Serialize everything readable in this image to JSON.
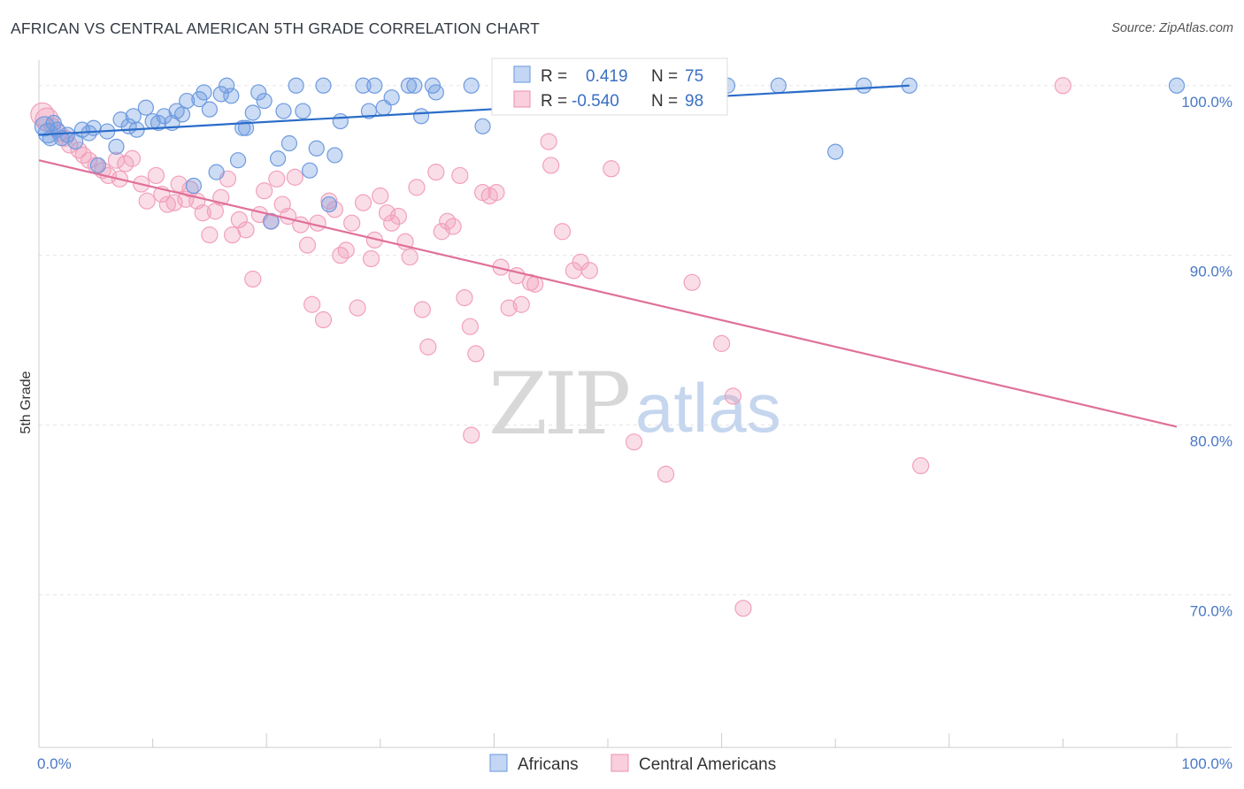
{
  "header": {
    "title": "AFRICAN VS CENTRAL AMERICAN 5TH GRADE CORRELATION CHART",
    "source": "Source: ZipAtlas.com"
  },
  "watermark": {
    "zip": "ZIP",
    "atlas": "atlas"
  },
  "legend": {
    "rows": [
      {
        "r_label": "R =",
        "r_value": "0.419",
        "n_label": "N =",
        "n_value": "75"
      },
      {
        "r_label": "R =",
        "r_value": "-0.540",
        "n_label": "N =",
        "n_value": "98"
      }
    ]
  },
  "bottom_legend": [
    "Africans",
    "Central Americans"
  ],
  "chart_data": {
    "type": "scatter",
    "ylabel": "5th Grade",
    "xlim": [
      0,
      100
    ],
    "ylim": [
      61,
      101.5
    ],
    "x_tick_labels": [
      "0.0%",
      "100.0%"
    ],
    "y_ticks": [
      {
        "value": 100,
        "label": "100.0%"
      },
      {
        "value": 90,
        "label": "90.0%"
      },
      {
        "value": 80,
        "label": "80.0%"
      },
      {
        "value": 70,
        "label": "70.0%"
      }
    ],
    "grid": true,
    "colors": {
      "africans": "#6e9be0",
      "central_americans": "#f2a0bb",
      "africans_line": "#2a6cc8",
      "central_americans_line": "#e0709a"
    },
    "series": [
      {
        "name": "Africans",
        "trend": {
          "x": [
            0,
            76.5
          ],
          "y": [
            97.1,
            100.0
          ]
        },
        "points": [
          [
            0.5,
            97.6
          ],
          [
            0.8,
            97.2
          ],
          [
            1.0,
            96.9
          ],
          [
            1.3,
            97.8
          ],
          [
            1.6,
            97.4
          ],
          [
            2.0,
            96.9
          ],
          [
            2.5,
            97.1
          ],
          [
            3.2,
            96.7
          ],
          [
            3.8,
            97.4
          ],
          [
            4.4,
            97.2
          ],
          [
            4.8,
            97.5
          ],
          [
            5.2,
            95.3
          ],
          [
            6.0,
            97.3
          ],
          [
            6.8,
            96.4
          ],
          [
            7.2,
            98.0
          ],
          [
            7.9,
            97.6
          ],
          [
            8.3,
            98.2
          ],
          [
            8.6,
            97.4
          ],
          [
            9.4,
            98.7
          ],
          [
            10.0,
            97.9
          ],
          [
            10.5,
            97.8
          ],
          [
            11.0,
            98.2
          ],
          [
            11.7,
            97.8
          ],
          [
            12.1,
            98.5
          ],
          [
            12.6,
            98.3
          ],
          [
            13.0,
            99.1
          ],
          [
            13.6,
            94.1
          ],
          [
            14.1,
            99.2
          ],
          [
            14.5,
            99.6
          ],
          [
            15.0,
            98.6
          ],
          [
            15.6,
            94.9
          ],
          [
            16.0,
            99.5
          ],
          [
            16.5,
            100.0
          ],
          [
            16.9,
            99.4
          ],
          [
            17.5,
            95.6
          ],
          [
            17.9,
            97.5
          ],
          [
            18.2,
            97.5
          ],
          [
            18.8,
            98.4
          ],
          [
            19.3,
            99.6
          ],
          [
            19.8,
            99.1
          ],
          [
            20.4,
            92.0
          ],
          [
            21.0,
            95.7
          ],
          [
            21.5,
            98.5
          ],
          [
            22.0,
            96.6
          ],
          [
            22.6,
            100.0
          ],
          [
            23.2,
            98.5
          ],
          [
            23.8,
            95.0
          ],
          [
            24.4,
            96.3
          ],
          [
            25.0,
            100.0
          ],
          [
            25.5,
            93.0
          ],
          [
            26.0,
            95.9
          ],
          [
            26.5,
            97.9
          ],
          [
            28.5,
            100.0
          ],
          [
            29.0,
            98.5
          ],
          [
            29.5,
            100.0
          ],
          [
            30.3,
            98.7
          ],
          [
            31.0,
            99.3
          ],
          [
            32.5,
            100.0
          ],
          [
            33.0,
            100.0
          ],
          [
            33.6,
            98.2
          ],
          [
            34.6,
            100.0
          ],
          [
            34.9,
            99.6
          ],
          [
            38.0,
            100.0
          ],
          [
            39.0,
            97.6
          ],
          [
            41.0,
            99.8
          ],
          [
            41.5,
            100.0
          ],
          [
            42.0,
            100.0
          ],
          [
            45.0,
            100.0
          ],
          [
            55.0,
            100.0
          ],
          [
            60.5,
            100.0
          ],
          [
            65.0,
            100.0
          ],
          [
            70.0,
            96.1
          ],
          [
            72.5,
            100.0
          ],
          [
            76.5,
            100.0
          ],
          [
            100,
            100.0
          ]
        ]
      },
      {
        "name": "Central Americans",
        "trend": {
          "x": [
            0,
            100
          ],
          "y": [
            95.6,
            79.9
          ]
        },
        "points": [
          [
            0.3,
            98.3
          ],
          [
            0.7,
            98.0
          ],
          [
            1.2,
            97.6
          ],
          [
            1.8,
            97.2
          ],
          [
            2.3,
            96.9
          ],
          [
            2.7,
            96.5
          ],
          [
            3.5,
            96.2
          ],
          [
            3.9,
            95.9
          ],
          [
            4.4,
            95.6
          ],
          [
            5.0,
            95.3
          ],
          [
            5.6,
            95.0
          ],
          [
            6.1,
            94.7
          ],
          [
            6.8,
            95.6
          ],
          [
            7.1,
            94.5
          ],
          [
            7.6,
            95.4
          ],
          [
            8.2,
            95.7
          ],
          [
            9.0,
            94.2
          ],
          [
            9.5,
            93.2
          ],
          [
            10.3,
            94.7
          ],
          [
            10.8,
            93.6
          ],
          [
            11.3,
            93.0
          ],
          [
            11.9,
            93.1
          ],
          [
            12.3,
            94.2
          ],
          [
            12.9,
            93.3
          ],
          [
            13.3,
            93.9
          ],
          [
            13.9,
            93.2
          ],
          [
            14.4,
            92.5
          ],
          [
            15.0,
            91.2
          ],
          [
            15.5,
            92.6
          ],
          [
            16.0,
            93.4
          ],
          [
            16.6,
            94.5
          ],
          [
            17.0,
            91.2
          ],
          [
            17.6,
            92.1
          ],
          [
            18.2,
            91.5
          ],
          [
            18.8,
            88.6
          ],
          [
            19.4,
            92.4
          ],
          [
            19.8,
            93.8
          ],
          [
            20.4,
            92.0
          ],
          [
            20.9,
            94.5
          ],
          [
            21.4,
            93.0
          ],
          [
            21.9,
            92.3
          ],
          [
            22.5,
            94.6
          ],
          [
            23.0,
            91.8
          ],
          [
            23.6,
            90.6
          ],
          [
            24.0,
            87.1
          ],
          [
            24.5,
            91.9
          ],
          [
            25.0,
            86.2
          ],
          [
            25.5,
            93.2
          ],
          [
            26.0,
            92.7
          ],
          [
            26.5,
            90.0
          ],
          [
            27.0,
            90.3
          ],
          [
            27.5,
            91.9
          ],
          [
            28.0,
            86.9
          ],
          [
            28.5,
            93.1
          ],
          [
            29.2,
            89.8
          ],
          [
            29.5,
            90.9
          ],
          [
            30.0,
            93.5
          ],
          [
            30.6,
            92.5
          ],
          [
            31.0,
            91.9
          ],
          [
            31.6,
            92.3
          ],
          [
            32.2,
            90.8
          ],
          [
            32.6,
            89.9
          ],
          [
            33.2,
            94.0
          ],
          [
            33.7,
            86.8
          ],
          [
            34.2,
            84.6
          ],
          [
            34.9,
            94.9
          ],
          [
            35.4,
            91.4
          ],
          [
            35.9,
            92.0
          ],
          [
            36.4,
            91.7
          ],
          [
            37.0,
            94.7
          ],
          [
            37.4,
            87.5
          ],
          [
            37.9,
            85.8
          ],
          [
            38.4,
            84.2
          ],
          [
            38.0,
            79.4
          ],
          [
            39.0,
            93.7
          ],
          [
            39.6,
            93.5
          ],
          [
            40.2,
            93.7
          ],
          [
            40.6,
            89.3
          ],
          [
            41.3,
            86.9
          ],
          [
            42.0,
            88.8
          ],
          [
            42.4,
            87.1
          ],
          [
            43.2,
            88.4
          ],
          [
            43.6,
            88.3
          ],
          [
            44.8,
            96.7
          ],
          [
            45.0,
            95.3
          ],
          [
            46.0,
            91.4
          ],
          [
            47.0,
            89.1
          ],
          [
            47.6,
            89.6
          ],
          [
            48.4,
            89.1
          ],
          [
            50.3,
            95.1
          ],
          [
            52.3,
            79.0
          ],
          [
            55.1,
            77.1
          ],
          [
            57.4,
            88.4
          ],
          [
            60.0,
            84.8
          ],
          [
            61.0,
            81.7
          ],
          [
            61.9,
            69.2
          ],
          [
            77.5,
            77.6
          ],
          [
            90.0,
            100.0
          ]
        ]
      }
    ]
  }
}
